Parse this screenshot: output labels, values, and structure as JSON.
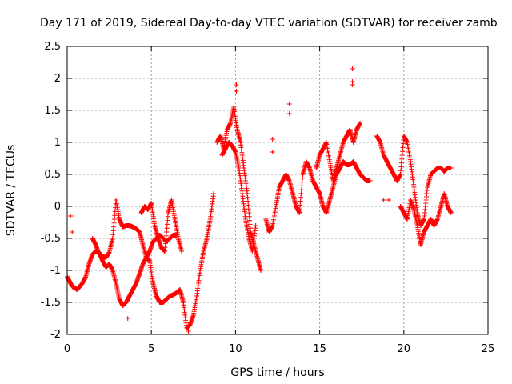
{
  "chart_data": {
    "type": "scatter",
    "title": "Day 171 of 2019, Sidereal Day-to-day VTEC variation (SDTVAR) for receiver zamb",
    "xlabel": "GPS time / hours",
    "ylabel": "SDTVAR / TECUs",
    "xlim": [
      0,
      25
    ],
    "ylim": [
      -2,
      2.5
    ],
    "x_ticks": [
      0,
      5,
      10,
      15,
      20,
      25
    ],
    "y_ticks": [
      -2,
      -1.5,
      -1,
      -0.5,
      0,
      0.5,
      1,
      1.5,
      2,
      2.5
    ],
    "x_tick_labels": [
      "0",
      "5",
      "10",
      "15",
      "20",
      "25"
    ],
    "y_tick_labels": [
      "-2",
      "-1.5",
      "-1",
      "-0.5",
      "0",
      "0.5",
      "1",
      "1.5",
      "2",
      "2.5"
    ],
    "grid": true,
    "marker": "+",
    "color": "#ff0000",
    "series": [
      {
        "name": "SDTVAR",
        "segments": [
          {
            "x": [
              0.0,
              0.3,
              0.6,
              0.9,
              1.1,
              1.3,
              1.5,
              1.7,
              1.9,
              2.1,
              2.3,
              2.5,
              2.7,
              2.9,
              3.1,
              3.3,
              3.5,
              3.7,
              3.9,
              4.1,
              4.3,
              4.5,
              4.7,
              4.9,
              5.1,
              5.3,
              5.5,
              5.7,
              5.9,
              6.1,
              6.3,
              6.5,
              6.7,
              6.9,
              7.1,
              7.3,
              7.5,
              7.7,
              7.9,
              8.1,
              8.3,
              8.5,
              8.7
            ],
            "y": [
              -1.1,
              -1.25,
              -1.3,
              -1.2,
              -1.1,
              -0.9,
              -0.75,
              -0.7,
              -0.72,
              -0.85,
              -0.95,
              -0.9,
              -1.0,
              -1.2,
              -1.45,
              -1.55,
              -1.5,
              -1.4,
              -1.3,
              -1.2,
              -1.05,
              -0.9,
              -0.8,
              -0.85,
              -1.2,
              -1.4,
              -1.5,
              -1.5,
              -1.45,
              -1.4,
              -1.38,
              -1.35,
              -1.3,
              -1.5,
              -1.9,
              -1.85,
              -1.7,
              -1.4,
              -1.0,
              -0.7,
              -0.5,
              -0.2,
              0.2
            ]
          },
          {
            "x": [
              1.5,
              1.7,
              1.9,
              2.1,
              2.3,
              2.5,
              2.7,
              2.9,
              3.1,
              3.3,
              3.5,
              3.7,
              3.9,
              4.1,
              4.3,
              4.5,
              4.7,
              4.9,
              5.1,
              5.3,
              5.5,
              5.7,
              5.9,
              6.1,
              6.3,
              6.5
            ],
            "y": [
              -0.5,
              -0.6,
              -0.75,
              -0.78,
              -0.8,
              -0.72,
              -0.5,
              0.1,
              -0.2,
              -0.32,
              -0.3,
              -0.3,
              -0.32,
              -0.35,
              -0.4,
              -0.6,
              -0.8,
              -0.7,
              -0.55,
              -0.5,
              -0.45,
              -0.5,
              -0.55,
              -0.5,
              -0.45,
              -0.45
            ]
          },
          {
            "x": [
              4.4,
              4.6,
              4.8,
              5.0,
              5.2,
              5.4,
              5.6,
              5.8,
              6.0,
              6.2,
              6.4,
              6.6,
              6.8
            ],
            "y": [
              -0.1,
              0.0,
              -0.05,
              0.05,
              -0.3,
              -0.5,
              -0.65,
              -0.7,
              -0.1,
              0.1,
              -0.2,
              -0.5,
              -0.7
            ]
          },
          {
            "x": [
              8.9,
              9.1,
              9.3,
              9.5,
              9.7,
              9.9,
              10.1,
              10.3,
              10.5,
              10.7,
              10.9,
              11.1,
              11.3,
              11.5
            ],
            "y": [
              1.0,
              1.1,
              0.9,
              1.2,
              1.3,
              1.55,
              1.2,
              1.0,
              0.6,
              0.2,
              -0.4,
              -0.6,
              -0.8,
              -1.0
            ]
          },
          {
            "x": [
              9.2,
              9.4,
              9.6,
              9.8,
              10.0,
              10.2,
              10.4,
              10.6,
              10.8,
              11.0,
              11.2
            ],
            "y": [
              0.8,
              0.9,
              1.0,
              0.95,
              0.85,
              0.6,
              0.2,
              -0.2,
              -0.5,
              -0.7,
              -0.3
            ]
          },
          {
            "x": [
              11.8,
              12.0,
              12.2,
              12.4,
              12.6,
              12.8,
              13.0,
              13.2,
              13.4,
              13.6,
              13.8,
              14.0,
              14.2,
              14.4,
              14.6,
              14.8,
              15.0,
              15.2,
              15.4,
              15.6,
              15.8,
              16.0,
              16.2,
              16.4,
              16.6,
              16.8,
              17.0,
              17.2,
              17.4,
              17.6,
              17.8,
              18.0
            ],
            "y": [
              -0.2,
              -0.4,
              -0.3,
              0.0,
              0.3,
              0.4,
              0.5,
              0.4,
              0.2,
              0.0,
              -0.1,
              0.5,
              0.7,
              0.6,
              0.4,
              0.3,
              0.2,
              0.0,
              -0.1,
              0.1,
              0.3,
              0.5,
              0.6,
              0.7,
              0.65,
              0.65,
              0.7,
              0.6,
              0.5,
              0.45,
              0.4,
              0.4
            ]
          },
          {
            "x": [
              14.8,
              15.0,
              15.2,
              15.4,
              15.6,
              15.8,
              16.0,
              16.2,
              16.4,
              16.6,
              16.8,
              17.0,
              17.2,
              17.4
            ],
            "y": [
              0.6,
              0.8,
              0.9,
              1.0,
              0.7,
              0.4,
              0.6,
              0.8,
              1.0,
              1.1,
              1.2,
              1.0,
              1.2,
              1.3
            ]
          },
          {
            "x": [
              18.4,
              18.6,
              18.8,
              19.0,
              19.2,
              19.4,
              19.6,
              19.8,
              20.0,
              20.2,
              20.4,
              20.6,
              20.8,
              21.0,
              21.2,
              21.4,
              21.6,
              21.8,
              22.0,
              22.2,
              22.4,
              22.6,
              22.8
            ],
            "y": [
              1.1,
              1.0,
              0.8,
              0.7,
              0.6,
              0.5,
              0.4,
              0.5,
              1.1,
              1.0,
              0.7,
              0.3,
              -0.1,
              -0.3,
              -0.2,
              0.3,
              0.5,
              0.55,
              0.6,
              0.6,
              0.55,
              0.6,
              0.6
            ]
          },
          {
            "x": [
              19.8,
              20.0,
              20.2,
              20.4,
              20.6,
              20.8,
              21.0,
              21.2,
              21.4,
              21.6,
              21.8,
              22.0,
              22.2,
              22.4,
              22.6,
              22.8
            ],
            "y": [
              0.0,
              -0.1,
              -0.2,
              0.1,
              -0.05,
              -0.3,
              -0.6,
              -0.4,
              -0.3,
              -0.2,
              -0.3,
              -0.2,
              0.0,
              0.2,
              0.0,
              -0.1
            ]
          }
        ],
        "isolated": [
          {
            "x": 0.2,
            "y": -0.15
          },
          {
            "x": 0.3,
            "y": -0.4
          },
          {
            "x": 3.6,
            "y": -1.75
          },
          {
            "x": 10.05,
            "y": 1.9
          },
          {
            "x": 10.05,
            "y": 1.8
          },
          {
            "x": 13.2,
            "y": 1.6
          },
          {
            "x": 13.2,
            "y": 1.45
          },
          {
            "x": 12.2,
            "y": 1.05
          },
          {
            "x": 12.2,
            "y": 0.85
          },
          {
            "x": 16.95,
            "y": 2.15
          },
          {
            "x": 16.95,
            "y": 1.95
          },
          {
            "x": 16.95,
            "y": 1.9
          },
          {
            "x": 18.8,
            "y": 0.1
          },
          {
            "x": 19.1,
            "y": 0.1
          },
          {
            "x": 7.2,
            "y": -1.95
          }
        ]
      }
    ]
  }
}
